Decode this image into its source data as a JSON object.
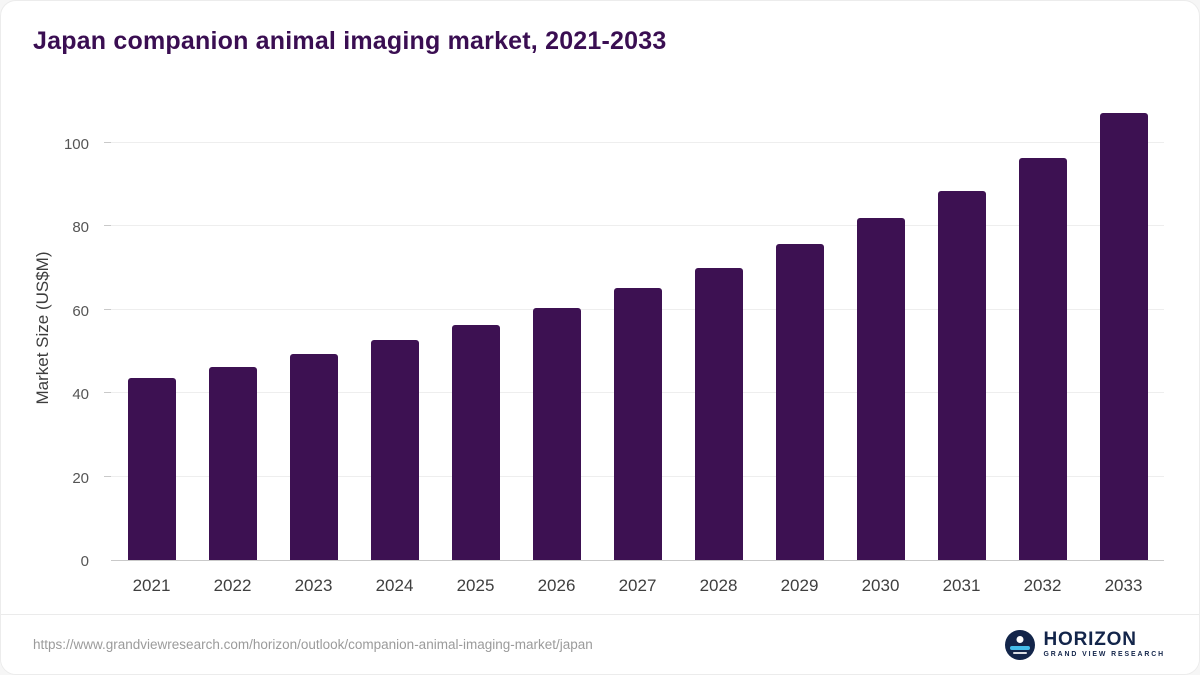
{
  "page": {
    "title": "Japan companion animal imaging market, 2021-2033",
    "source_url": "https://www.grandviewresearch.com/horizon/outlook/companion-animal-imaging-market/japan"
  },
  "brand": {
    "name": "HORIZON",
    "subtitle": "GRAND VIEW RESEARCH",
    "icon": "horizon-sunrise-circle-icon"
  },
  "colors": {
    "bar": "#3d1152",
    "title": "#3a0e52",
    "brand_navy": "#13254a",
    "brand_blue": "#45bdea",
    "grid": "#eeeeee"
  },
  "chart_data": {
    "type": "bar",
    "title": "Japan companion animal imaging market, 2021-2033",
    "categories": [
      "2021",
      "2022",
      "2023",
      "2024",
      "2025",
      "2026",
      "2027",
      "2028",
      "2029",
      "2030",
      "2031",
      "2032",
      "2033"
    ],
    "values": [
      43.6,
      46.2,
      49.4,
      52.7,
      56.4,
      60.5,
      65.3,
      70.1,
      75.8,
      81.9,
      88.6,
      96.3,
      107.3
    ],
    "xlabel": "",
    "ylabel": "Market Size (US$M)",
    "ylim": [
      0,
      110
    ],
    "yticks": [
      0,
      20,
      40,
      60,
      80,
      100
    ],
    "grid": true,
    "legend": "none",
    "bar_color": "#3d1152"
  }
}
